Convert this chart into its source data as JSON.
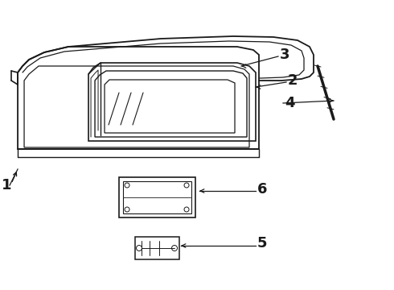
{
  "bg_color": "#ffffff",
  "line_color": "#1a1a1a",
  "fig_w": 4.9,
  "fig_h": 3.6,
  "dpi": 100,
  "label_fs": 13,
  "label_fw": "bold"
}
